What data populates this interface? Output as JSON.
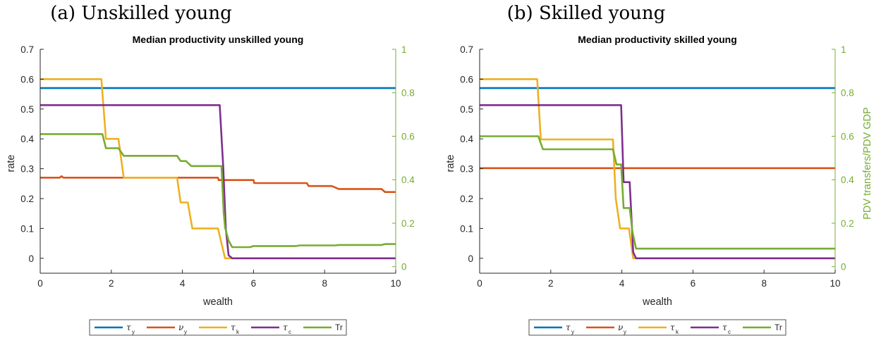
{
  "colors": {
    "tau_y": "#0072BD",
    "nu_y": "#D95319",
    "tau_k": "#EDB120",
    "tau_c": "#7E2F8E",
    "Tr": "#77AC30",
    "axis": "#262626",
    "right_axis": "#77AC30"
  },
  "legend_labels": [
    {
      "sym": "τ",
      "sub": "y"
    },
    {
      "sym": "ν",
      "sub": "y"
    },
    {
      "sym": "τ",
      "sub": "k"
    },
    {
      "sym": "τ",
      "sub": "c"
    },
    {
      "sym": "Tr",
      "sub": ""
    }
  ],
  "chart_data": [
    {
      "type": "line",
      "caption": "(a) Unskilled young",
      "title": "Median productivity unskilled young",
      "xlabel": "wealth",
      "ylabel": "rate",
      "y2label": "",
      "xlim": [
        0,
        10
      ],
      "ylim": [
        -0.05,
        0.7
      ],
      "y2lim": [
        -0.03,
        1
      ],
      "xticks": [
        0,
        2,
        4,
        6,
        8,
        10
      ],
      "yticks": [
        0,
        0.1,
        0.2,
        0.3,
        0.4,
        0.5,
        0.6,
        0.7
      ],
      "y2ticks": [
        0,
        0.2,
        0.4,
        0.6,
        0.8,
        1
      ],
      "xtick_labels": [
        "0",
        "2",
        "4",
        "6",
        "8",
        "10"
      ],
      "ytick_labels": [
        "0",
        "0.1",
        "0.2",
        "0.3",
        "0.4",
        "0.5",
        "0.6",
        "0.7"
      ],
      "y2tick_labels": [
        "0",
        "0.2",
        "0.4",
        "0.6",
        "0.8",
        "1"
      ],
      "legend_position": "bottom",
      "grid": false,
      "series": [
        {
          "key": "tau_y",
          "axis": "left",
          "points": [
            [
              0,
              0.57
            ],
            [
              10,
              0.57
            ]
          ]
        },
        {
          "key": "nu_y",
          "axis": "left",
          "points": [
            [
              0,
              0.27
            ],
            [
              0.55,
              0.27
            ],
            [
              0.6,
              0.275
            ],
            [
              0.65,
              0.27
            ],
            [
              5.0,
              0.27
            ],
            [
              5.02,
              0.262
            ],
            [
              6.0,
              0.262
            ],
            [
              6.02,
              0.252
            ],
            [
              7.5,
              0.252
            ],
            [
              7.55,
              0.242
            ],
            [
              8.2,
              0.242
            ],
            [
              8.4,
              0.232
            ],
            [
              9.6,
              0.232
            ],
            [
              9.7,
              0.222
            ],
            [
              10,
              0.222
            ]
          ]
        },
        {
          "key": "tau_k",
          "axis": "left",
          "points": [
            [
              0,
              0.6
            ],
            [
              1.72,
              0.6
            ],
            [
              1.85,
              0.4
            ],
            [
              2.2,
              0.4
            ],
            [
              2.35,
              0.27
            ],
            [
              3.85,
              0.27
            ],
            [
              3.95,
              0.187
            ],
            [
              4.15,
              0.187
            ],
            [
              4.28,
              0.1
            ],
            [
              5.0,
              0.1
            ],
            [
              5.1,
              0.05
            ],
            [
              5.2,
              0.0
            ],
            [
              10,
              0.0
            ]
          ]
        },
        {
          "key": "tau_c",
          "axis": "left",
          "points": [
            [
              0,
              0.513
            ],
            [
              5.05,
              0.513
            ],
            [
              5.15,
              0.3
            ],
            [
              5.22,
              0.1
            ],
            [
              5.3,
              0.01
            ],
            [
              5.4,
              0.0
            ],
            [
              10,
              0.0
            ]
          ]
        },
        {
          "key": "Tr",
          "axis": "right",
          "points": [
            [
              0,
              0.61
            ],
            [
              1.75,
              0.61
            ],
            [
              1.85,
              0.545
            ],
            [
              2.2,
              0.545
            ],
            [
              2.35,
              0.51
            ],
            [
              3.85,
              0.51
            ],
            [
              3.95,
              0.486
            ],
            [
              4.1,
              0.486
            ],
            [
              4.25,
              0.463
            ],
            [
              5.1,
              0.463
            ],
            [
              5.16,
              0.25
            ],
            [
              5.2,
              0.18
            ],
            [
              5.3,
              0.12
            ],
            [
              5.4,
              0.09
            ],
            [
              5.9,
              0.09
            ],
            [
              6.0,
              0.095
            ],
            [
              7.2,
              0.095
            ],
            [
              7.3,
              0.098
            ],
            [
              8.3,
              0.098
            ],
            [
              8.4,
              0.1
            ],
            [
              9.6,
              0.1
            ],
            [
              9.7,
              0.104
            ],
            [
              10,
              0.104
            ]
          ]
        }
      ]
    },
    {
      "type": "line",
      "caption": "(b) Skilled young",
      "title": "Median productivity skilled young",
      "xlabel": "wealth",
      "ylabel": "rate",
      "y2label": "PDV transfers/PDV GDP",
      "xlim": [
        0,
        10
      ],
      "ylim": [
        -0.05,
        0.7
      ],
      "y2lim": [
        -0.03,
        1
      ],
      "xticks": [
        0,
        2,
        4,
        6,
        8,
        10
      ],
      "yticks": [
        0,
        0.1,
        0.2,
        0.3,
        0.4,
        0.5,
        0.6,
        0.7
      ],
      "y2ticks": [
        0,
        0.2,
        0.4,
        0.6,
        0.8,
        1
      ],
      "xtick_labels": [
        "0",
        "2",
        "4",
        "6",
        "8",
        "10"
      ],
      "ytick_labels": [
        "0",
        "0.1",
        "0.2",
        "0.3",
        "0.4",
        "0.5",
        "0.6",
        "0.7"
      ],
      "y2tick_labels": [
        "0",
        "0.2",
        "0.4",
        "0.6",
        "0.8",
        "1"
      ],
      "legend_position": "bottom",
      "grid": false,
      "series": [
        {
          "key": "tau_y",
          "axis": "left",
          "points": [
            [
              0,
              0.57
            ],
            [
              10,
              0.57
            ]
          ]
        },
        {
          "key": "nu_y",
          "axis": "left",
          "points": [
            [
              0,
              0.302
            ],
            [
              10,
              0.302
            ]
          ]
        },
        {
          "key": "tau_k",
          "axis": "left",
          "points": [
            [
              0,
              0.6
            ],
            [
              1.62,
              0.6
            ],
            [
              1.72,
              0.398
            ],
            [
              3.75,
              0.398
            ],
            [
              3.83,
              0.2
            ],
            [
              3.95,
              0.1
            ],
            [
              4.2,
              0.1
            ],
            [
              4.32,
              0.0
            ],
            [
              10,
              0.0
            ]
          ]
        },
        {
          "key": "tau_c",
          "axis": "left",
          "points": [
            [
              0,
              0.513
            ],
            [
              3.98,
              0.513
            ],
            [
              4.05,
              0.255
            ],
            [
              4.22,
              0.255
            ],
            [
              4.32,
              0.02
            ],
            [
              4.4,
              0.0
            ],
            [
              10,
              0.0
            ]
          ]
        },
        {
          "key": "Tr",
          "axis": "right",
          "points": [
            [
              0,
              0.6
            ],
            [
              1.65,
              0.6
            ],
            [
              1.78,
              0.54
            ],
            [
              3.75,
              0.54
            ],
            [
              3.85,
              0.47
            ],
            [
              3.98,
              0.47
            ],
            [
              4.05,
              0.27
            ],
            [
              4.22,
              0.27
            ],
            [
              4.3,
              0.16
            ],
            [
              4.4,
              0.083
            ],
            [
              10,
              0.083
            ]
          ]
        }
      ]
    }
  ]
}
